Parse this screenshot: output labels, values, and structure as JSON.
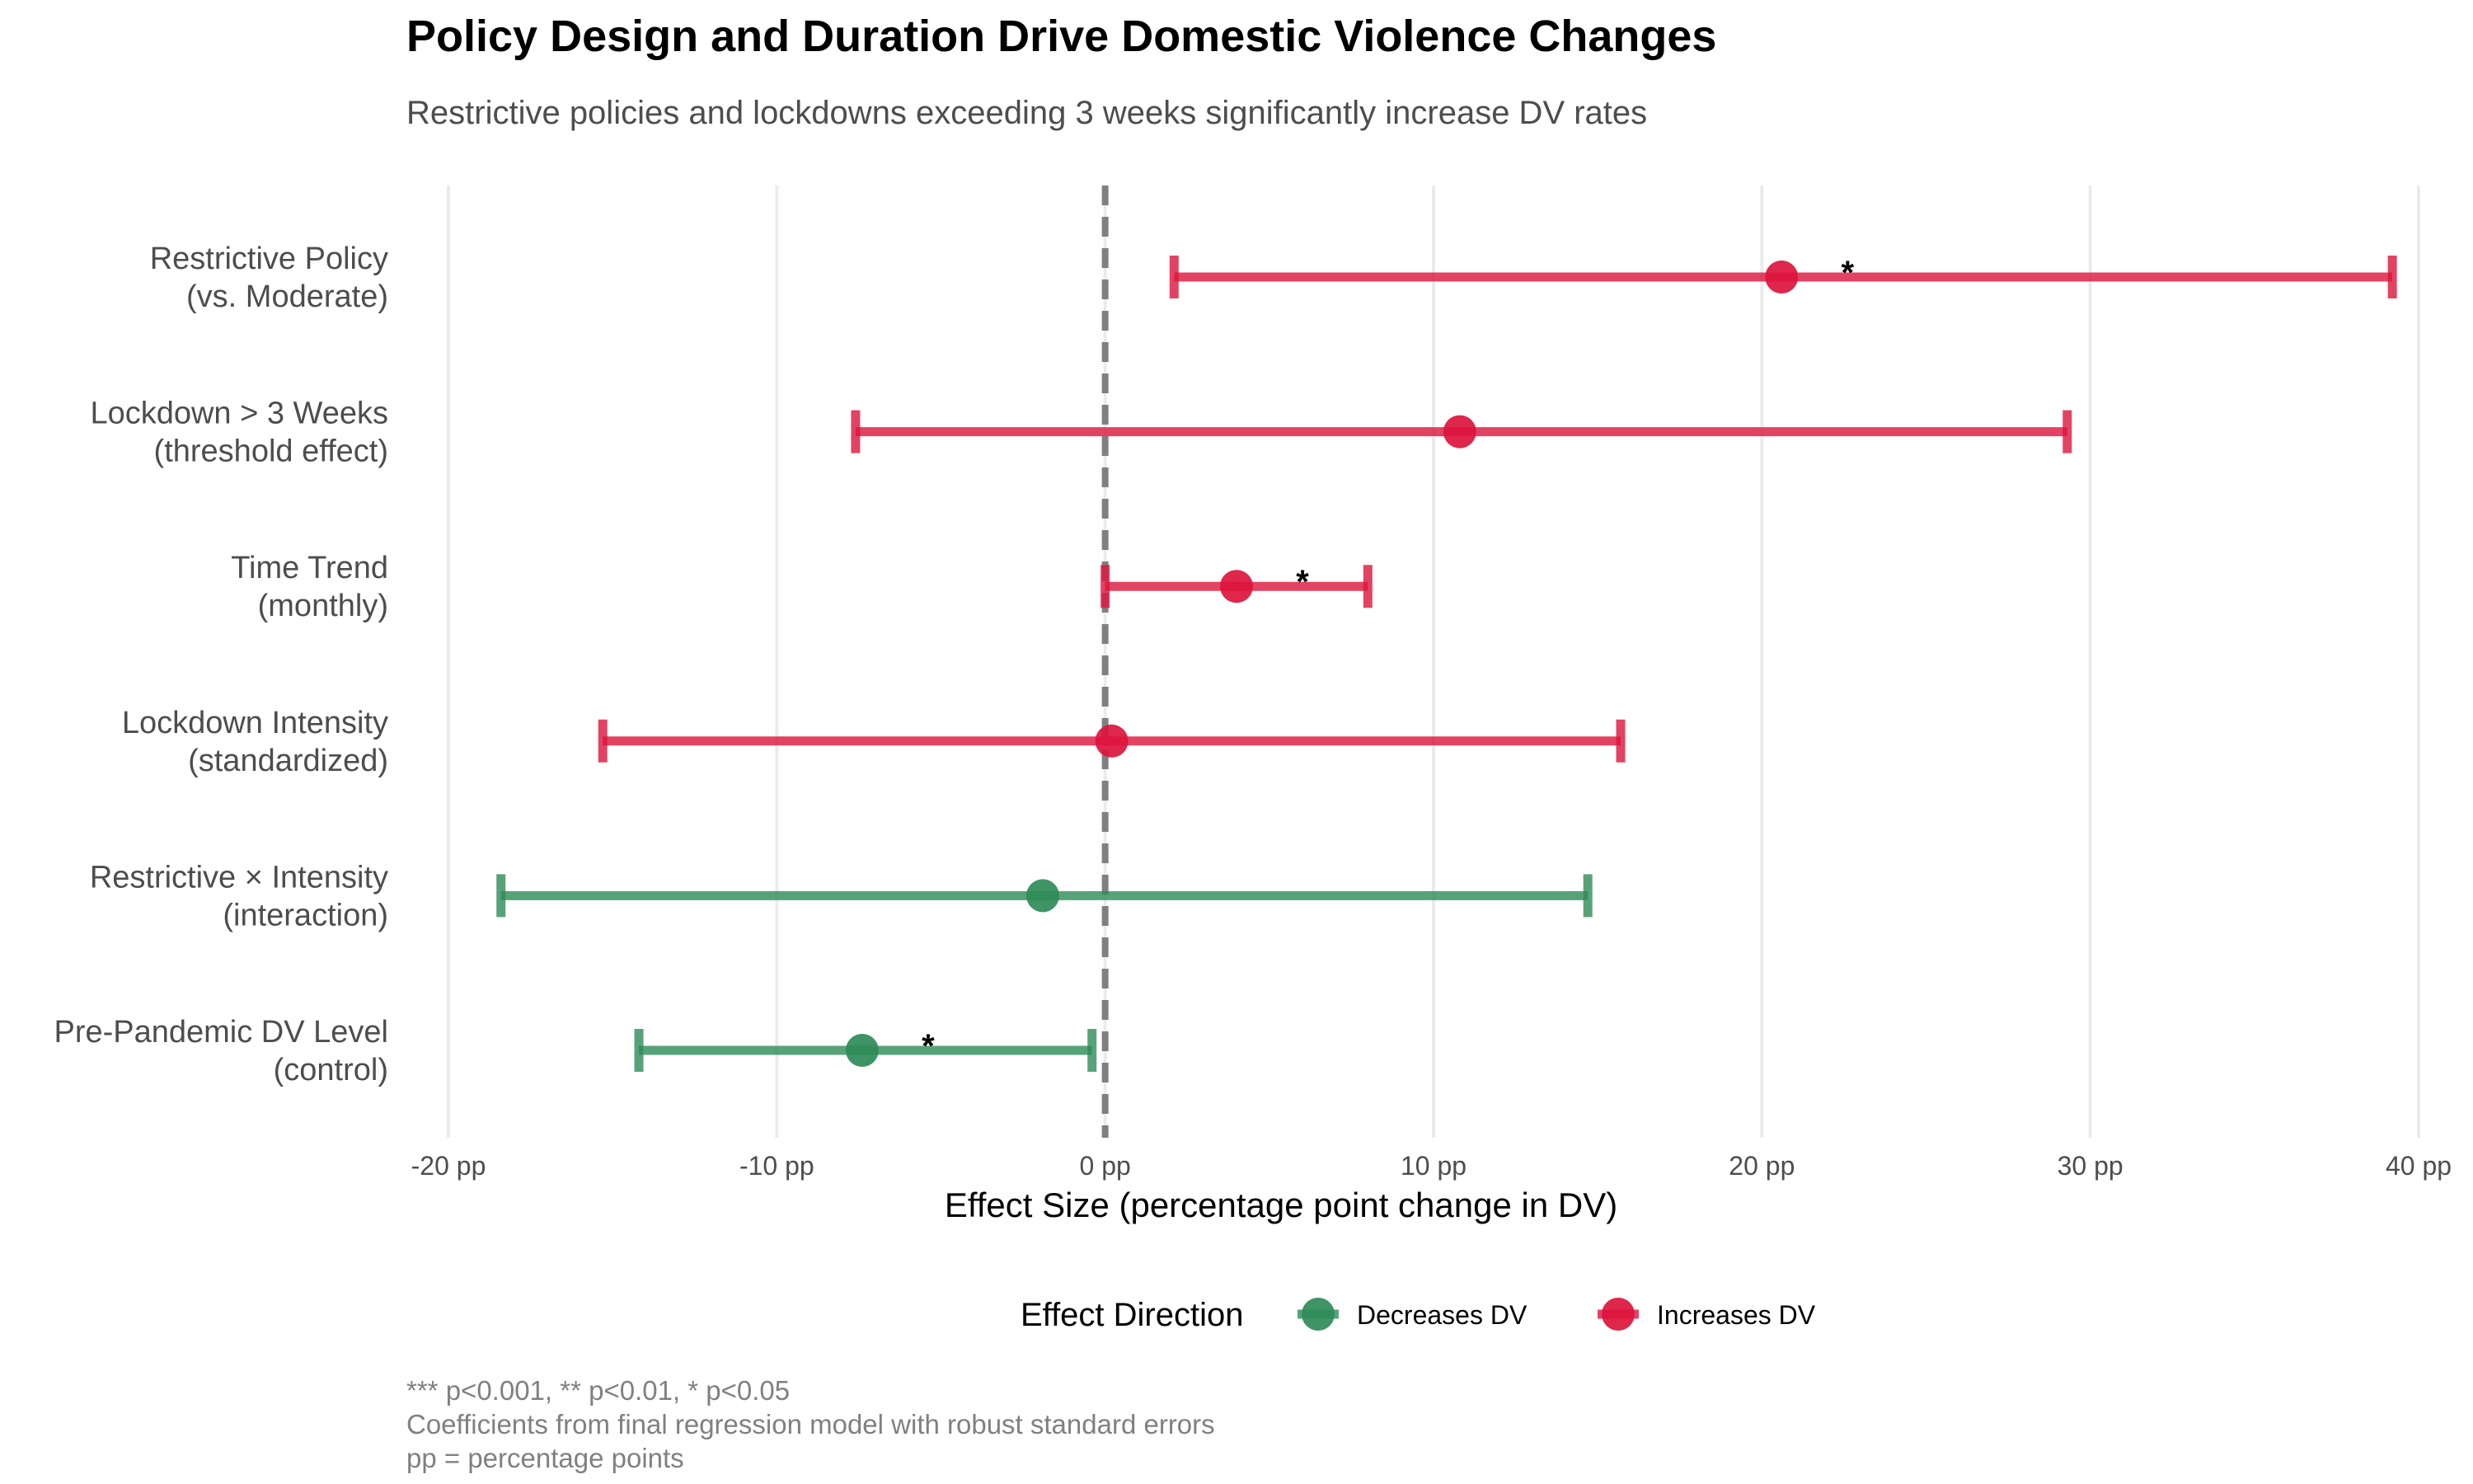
{
  "chart_data": {
    "type": "forest",
    "title": "Policy Design and Duration Drive Domestic Violence Changes",
    "subtitle": "Restrictive policies and lockdowns exceeding 3 weeks significantly increase DV rates",
    "xlabel": "Effect Size (percentage point change in DV)",
    "xlim": [
      -20,
      40
    ],
    "x_ticks": [
      {
        "value": -20,
        "label": "-20 pp"
      },
      {
        "value": -10,
        "label": "-10 pp"
      },
      {
        "value": 0,
        "label": "0 pp"
      },
      {
        "value": 10,
        "label": "10 pp"
      },
      {
        "value": 20,
        "label": "20 pp"
      },
      {
        "value": 30,
        "label": "30 pp"
      },
      {
        "value": 40,
        "label": "40 pp"
      }
    ],
    "reference_line": 0,
    "grid": true,
    "colors": {
      "decreases": "#2e8b57",
      "increases": "#dc143c"
    },
    "legend": {
      "title": "Effect Direction",
      "position": "bottom",
      "items": [
        {
          "key": "decreases",
          "label": "Decreases DV"
        },
        {
          "key": "increases",
          "label": "Increases DV"
        }
      ]
    },
    "rows": [
      {
        "label_line1": "Restrictive Policy",
        "label_line2": "(vs. Moderate)",
        "estimate": 20.6,
        "ci_low": 2.1,
        "ci_high": 39.2,
        "direction": "increases",
        "sig": "*"
      },
      {
        "label_line1": "Lockdown > 3 Weeks",
        "label_line2": "(threshold effect)",
        "estimate": 10.8,
        "ci_low": -7.6,
        "ci_high": 29.3,
        "direction": "increases",
        "sig": ""
      },
      {
        "label_line1": "Time Trend",
        "label_line2": "(monthly)",
        "estimate": 4.0,
        "ci_low": 0.0,
        "ci_high": 8.0,
        "direction": "increases",
        "sig": "*"
      },
      {
        "label_line1": "Lockdown Intensity",
        "label_line2": "(standardized)",
        "estimate": 0.2,
        "ci_low": -15.3,
        "ci_high": 15.7,
        "direction": "increases",
        "sig": ""
      },
      {
        "label_line1": "Restrictive × Intensity",
        "label_line2": "(interaction)",
        "estimate": -1.9,
        "ci_low": -18.4,
        "ci_high": 14.7,
        "direction": "decreases",
        "sig": ""
      },
      {
        "label_line1": "Pre-Pandemic DV Level",
        "label_line2": "(control)",
        "estimate": -7.4,
        "ci_low": -14.2,
        "ci_high": -0.4,
        "direction": "decreases",
        "sig": "*"
      }
    ],
    "caption_lines": [
      "*** p<0.001, ** p<0.01, * p<0.05",
      "Coefficients from final regression model with robust standard errors",
      "pp = percentage points"
    ]
  }
}
